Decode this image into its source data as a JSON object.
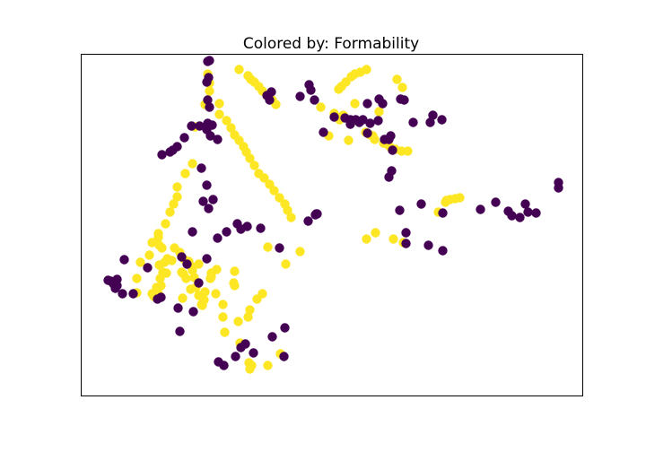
{
  "chart_data": {
    "type": "scatter",
    "title": "Colored by: Formability",
    "xlabel": "",
    "ylabel": "",
    "xlim": [
      0,
      559
    ],
    "ylim": [
      0,
      381
    ],
    "grid": false,
    "axis_ticks": false,
    "legend": "none",
    "colors": {
      "0": "#440154",
      "1": "#fde725"
    },
    "series": [
      {
        "color_key": "1",
        "points": [
          [
            141,
            359
          ],
          [
            143,
            349
          ],
          [
            143,
            340
          ],
          [
            138,
            325
          ],
          [
            127,
            300
          ],
          [
            124,
            259
          ],
          [
            116,
            248
          ],
          [
            107,
            233
          ],
          [
            107,
            222
          ],
          [
            103,
            214
          ],
          [
            99,
            205
          ],
          [
            94,
            192
          ],
          [
            86,
            181
          ],
          [
            79,
            171
          ],
          [
            76,
            157
          ],
          [
            66,
            149
          ],
          [
            62,
            131
          ],
          [
            62,
            115
          ],
          [
            154,
            326
          ],
          [
            154,
            314
          ],
          [
            162,
            307
          ],
          [
            167,
            299
          ],
          [
            171,
            291
          ],
          [
            176,
            285
          ],
          [
            181,
            278
          ],
          [
            184,
            272
          ],
          [
            188,
            265
          ],
          [
            193,
            257
          ],
          [
            198,
            248
          ],
          [
            204,
            243
          ],
          [
            210,
            236
          ],
          [
            215,
            229
          ],
          [
            221,
            221
          ],
          [
            227,
            214
          ],
          [
            230,
            207
          ],
          [
            234,
            199
          ],
          [
            176,
            364
          ],
          [
            186,
            357
          ],
          [
            189,
            353
          ],
          [
            193,
            350
          ],
          [
            198,
            345
          ],
          [
            202,
            340
          ],
          [
            207,
            335
          ],
          [
            213,
            330
          ],
          [
            217,
            325
          ],
          [
            104,
            165
          ],
          [
            110,
            160
          ],
          [
            115,
            152
          ],
          [
            120,
            150
          ],
          [
            122,
            145
          ],
          [
            124,
            140
          ],
          [
            126,
            132
          ],
          [
            128,
            121
          ],
          [
            131,
            112
          ],
          [
            134,
            102
          ],
          [
            96,
            153
          ],
          [
            101,
            151
          ],
          [
            112,
            138
          ],
          [
            114,
            136
          ],
          [
            117,
            131
          ],
          [
            131,
            147
          ],
          [
            145,
            133
          ],
          [
            150,
            114
          ],
          [
            158,
            102
          ],
          [
            158,
            88
          ],
          [
            160,
            71
          ],
          [
            122,
            119
          ],
          [
            113,
            109
          ],
          [
            135,
            101
          ],
          [
            137,
            107
          ],
          [
            138,
            116
          ],
          [
            144,
            131
          ],
          [
            145,
            137
          ],
          [
            151,
            141
          ],
          [
            171,
            139
          ],
          [
            170,
            126
          ],
          [
            171,
            123
          ],
          [
            188,
            96
          ],
          [
            186,
            88
          ],
          [
            175,
            83
          ],
          [
            86,
            177
          ],
          [
            87,
            168
          ],
          [
            90,
            165
          ],
          [
            87,
            146
          ],
          [
            88,
            131
          ],
          [
            89,
            123
          ],
          [
            84,
            121
          ],
          [
            86,
            114
          ],
          [
            81,
            111
          ],
          [
            79,
            114
          ],
          [
            93,
            149
          ],
          [
            91,
            138
          ],
          [
            95,
            137
          ],
          [
            290,
            345
          ],
          [
            287,
            342
          ],
          [
            295,
            350
          ],
          [
            301,
            356
          ],
          [
            305,
            359
          ],
          [
            311,
            361
          ],
          [
            318,
            364
          ],
          [
            267,
            322
          ],
          [
            282,
            315
          ],
          [
            332,
            317
          ],
          [
            305,
            326
          ],
          [
            292,
            313
          ],
          [
            288,
            308
          ],
          [
            276,
            290
          ],
          [
            352,
            353
          ],
          [
            358,
            344
          ],
          [
            298,
            285
          ],
          [
            317,
            294
          ],
          [
            322,
            291
          ],
          [
            325,
            290
          ],
          [
            327,
            286
          ],
          [
            337,
            282
          ],
          [
            342,
            280
          ],
          [
            345,
            277
          ],
          [
            350,
            275
          ],
          [
            357,
            273
          ],
          [
            364,
            273
          ],
          [
            187,
            37
          ],
          [
            190,
            34
          ],
          [
            188,
            30
          ],
          [
            208,
            34
          ],
          [
            222,
            47
          ],
          [
            177,
            59
          ],
          [
            196,
            108
          ],
          [
            202,
            114
          ],
          [
            208,
            166
          ],
          [
            228,
            147
          ],
          [
            244,
            161
          ],
          [
            318,
            175
          ],
          [
            348,
            175
          ],
          [
            359,
            171
          ],
          [
            406,
            216
          ],
          [
            407,
            218
          ],
          [
            411,
            219
          ],
          [
            417,
            220
          ],
          [
            422,
            221
          ],
          [
            398,
            205
          ],
          [
            328,
            182
          ]
        ]
      },
      {
        "color_key": "0",
        "points": [
          [
            141,
            373
          ],
          [
            143,
            374
          ],
          [
            142,
            355
          ],
          [
            140,
            350
          ],
          [
            141,
            330
          ],
          [
            143,
            322
          ],
          [
            141,
            304
          ],
          [
            144,
            290
          ],
          [
            134,
            254
          ],
          [
            136,
            217
          ],
          [
            142,
            209
          ],
          [
            147,
            219
          ],
          [
            124,
            183
          ],
          [
            140,
            235
          ],
          [
            183,
            58
          ],
          [
            178,
            54
          ],
          [
            256,
            341
          ],
          [
            254,
            347
          ],
          [
            210,
            330
          ],
          [
            207,
            335
          ],
          [
            212,
            339
          ],
          [
            244,
            334
          ],
          [
            260,
            330
          ],
          [
            270,
            294
          ],
          [
            282,
            311
          ],
          [
            294,
            310
          ],
          [
            300,
            308
          ],
          [
            300,
            303
          ],
          [
            306,
            308
          ],
          [
            310,
            305
          ],
          [
            314,
            308
          ],
          [
            319,
            293
          ],
          [
            322,
            304
          ],
          [
            331,
            307
          ],
          [
            345,
            290
          ],
          [
            338,
            286
          ],
          [
            343,
            286
          ],
          [
            347,
            274
          ],
          [
            343,
            244
          ],
          [
            346,
            251
          ],
          [
            370,
            305
          ],
          [
            336,
            326
          ],
          [
            319,
            326
          ],
          [
            332,
            331
          ],
          [
            356,
            331
          ],
          [
            360,
            330
          ],
          [
            392,
            313
          ],
          [
            389,
            305
          ],
          [
            402,
            308
          ],
          [
            445,
            208
          ],
          [
            480,
            201
          ],
          [
            489,
            199
          ],
          [
            498,
            205
          ],
          [
            507,
            204
          ],
          [
            403,
            162
          ],
          [
            362,
            170
          ],
          [
            387,
            168
          ],
          [
            495,
            214
          ],
          [
            532,
            238
          ],
          [
            532,
            232
          ],
          [
            462,
            216
          ],
          [
            476,
            206
          ],
          [
            403,
            204
          ],
          [
            355,
            207
          ],
          [
            379,
            214
          ],
          [
            362,
            182
          ],
          [
            253,
            195
          ],
          [
            200,
            187
          ],
          [
            261,
            202
          ],
          [
            262,
            203
          ],
          [
            185,
            189
          ],
          [
            178,
            186
          ],
          [
            174,
            192
          ],
          [
            162,
            183
          ],
          [
            152,
            176
          ],
          [
            140,
            153
          ],
          [
            131,
            126
          ],
          [
            221,
            165
          ],
          [
            263,
            203
          ],
          [
            90,
            269
          ],
          [
            99,
            272
          ],
          [
            102,
            274
          ],
          [
            107,
            278
          ],
          [
            115,
            288
          ],
          [
            123,
            301
          ],
          [
            132,
            301
          ],
          [
            142,
            303
          ],
          [
            146,
            302
          ],
          [
            140,
            297
          ],
          [
            152,
            286
          ],
          [
            33,
            128
          ],
          [
            38,
            120
          ],
          [
            46,
            114
          ],
          [
            58,
            114
          ],
          [
            74,
            143
          ],
          [
            110,
            72
          ],
          [
            125,
            94
          ],
          [
            108,
            98
          ],
          [
            118,
            147
          ],
          [
            112,
            155
          ],
          [
            48,
            152
          ],
          [
            40,
            130
          ],
          [
            85,
            108
          ],
          [
            89,
            110
          ],
          [
            153,
            38
          ],
          [
            159,
            34
          ],
          [
            172,
            44
          ],
          [
            192,
            48
          ],
          [
            213,
            66
          ],
          [
            227,
            76
          ],
          [
            226,
            44
          ],
          [
            30,
            129
          ],
          [
            36,
            125
          ],
          [
            40,
            123
          ]
        ]
      }
    ]
  }
}
